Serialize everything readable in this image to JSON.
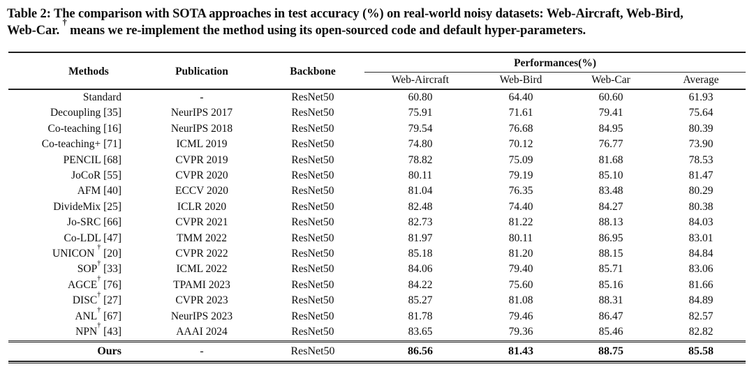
{
  "caption": {
    "line1": "Table 2: The comparison with SOTA approaches in test accuracy (%) on real-world noisy datasets: Web-Aircraft, Web-Bird,",
    "line2": "Web-Car. † means we re-implement the method using its open-sourced code and default hyper-parameters."
  },
  "table": {
    "header": {
      "methods": "Methods",
      "publication": "Publication",
      "backbone": "Backbone",
      "performances": "Performances(%)",
      "sub_columns": [
        "Web-Aircraft",
        "Web-Bird",
        "Web-Car",
        "Average"
      ]
    },
    "rows": [
      {
        "method": "Standard",
        "publication": "-",
        "backbone": "ResNet50",
        "values": [
          "60.80",
          "64.40",
          "60.60",
          "61.93"
        ]
      },
      {
        "method": "Decoupling [35]",
        "publication": "NeurIPS 2017",
        "backbone": "ResNet50",
        "values": [
          "75.91",
          "71.61",
          "79.41",
          "75.64"
        ]
      },
      {
        "method": "Co-teaching [16]",
        "publication": "NeurIPS 2018",
        "backbone": "ResNet50",
        "values": [
          "79.54",
          "76.68",
          "84.95",
          "80.39"
        ]
      },
      {
        "method": "Co-teaching+ [71]",
        "publication": "ICML 2019",
        "backbone": "ResNet50",
        "values": [
          "74.80",
          "70.12",
          "76.77",
          "73.90"
        ]
      },
      {
        "method": "PENCIL [68]",
        "publication": "CVPR 2019",
        "backbone": "ResNet50",
        "values": [
          "78.82",
          "75.09",
          "81.68",
          "78.53"
        ]
      },
      {
        "method": "JoCoR [55]",
        "publication": "CVPR 2020",
        "backbone": "ResNet50",
        "values": [
          "80.11",
          "79.19",
          "85.10",
          "81.47"
        ]
      },
      {
        "method": "AFM [40]",
        "publication": "ECCV 2020",
        "backbone": "ResNet50",
        "values": [
          "81.04",
          "76.35",
          "83.48",
          "80.29"
        ]
      },
      {
        "method": "DivideMix [25]",
        "publication": "ICLR 2020",
        "backbone": "ResNet50",
        "values": [
          "82.48",
          "74.40",
          "84.27",
          "80.38"
        ]
      },
      {
        "method": "Jo-SRC [66]",
        "publication": "CVPR 2021",
        "backbone": "ResNet50",
        "values": [
          "82.73",
          "81.22",
          "88.13",
          "84.03"
        ]
      },
      {
        "method": "Co-LDL [47]",
        "publication": "TMM 2022",
        "backbone": "ResNet50",
        "values": [
          "81.97",
          "80.11",
          "86.95",
          "83.01"
        ]
      },
      {
        "method": "UNICON † [20]",
        "publication": "CVPR 2022",
        "backbone": "ResNet50",
        "values": [
          "85.18",
          "81.20",
          "88.15",
          "84.84"
        ]
      },
      {
        "method": "SOP† [33]",
        "publication": "ICML 2022",
        "backbone": "ResNet50",
        "values": [
          "84.06",
          "79.40",
          "85.71",
          "83.06"
        ]
      },
      {
        "method": "AGCE† [76]",
        "publication": "TPAMI 2023",
        "backbone": "ResNet50",
        "values": [
          "84.22",
          "75.60",
          "85.16",
          "81.66"
        ]
      },
      {
        "method": "DISC† [27]",
        "publication": "CVPR 2023",
        "backbone": "ResNet50",
        "values": [
          "85.27",
          "81.08",
          "88.31",
          "84.89"
        ]
      },
      {
        "method": "ANL† [67]",
        "publication": "NeurIPS 2023",
        "backbone": "ResNet50",
        "values": [
          "81.78",
          "79.46",
          "86.47",
          "82.57"
        ]
      },
      {
        "method": "NPN† [43]",
        "publication": "AAAI 2024",
        "backbone": "ResNet50",
        "values": [
          "83.65",
          "79.36",
          "85.46",
          "82.82"
        ]
      }
    ],
    "ours_row": {
      "method": "Ours",
      "publication": "-",
      "backbone": "ResNet50",
      "values": [
        "86.56",
        "81.43",
        "88.75",
        "85.58"
      ]
    }
  },
  "colors": {
    "text": "#0d0d0d",
    "rule": "#1f1f1f",
    "background": "#ffffff"
  }
}
